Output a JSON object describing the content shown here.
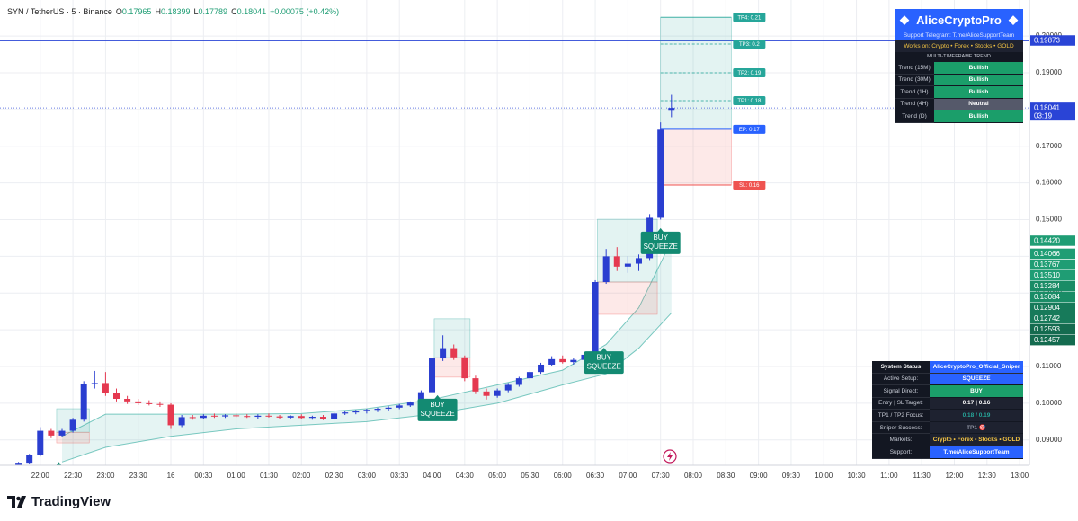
{
  "header": {
    "symbol": "SYN / TetherUS · 5 · Binance",
    "ohlc": [
      {
        "label": "O",
        "value": "0.17965"
      },
      {
        "label": "H",
        "value": "0.18399"
      },
      {
        "label": "L",
        "value": "0.17789"
      },
      {
        "label": "C",
        "value": "0.18041"
      }
    ],
    "change": "+0.00075 (+0.42%)"
  },
  "chart_data": {
    "type": "candlestick",
    "x": [
      "21:40",
      "21:50",
      "22:00",
      "22:10",
      "22:20",
      "22:30",
      "22:40",
      "22:50",
      "23:00",
      "23:10",
      "23:20",
      "23:30",
      "23:40",
      "23:50",
      "00:00",
      "00:10",
      "00:20",
      "00:30",
      "00:40",
      "00:50",
      "01:00",
      "01:10",
      "01:20",
      "01:30",
      "01:40",
      "01:50",
      "02:00",
      "02:10",
      "02:20",
      "02:30",
      "02:40",
      "02:50",
      "03:00",
      "03:10",
      "03:20",
      "03:30",
      "03:40",
      "03:50",
      "04:00",
      "04:10",
      "04:20",
      "04:30",
      "04:40",
      "04:50",
      "05:00",
      "05:10",
      "05:20",
      "05:30",
      "05:40",
      "05:50",
      "06:00",
      "06:10",
      "06:20",
      "06:30",
      "06:40",
      "06:50",
      "07:00",
      "07:10",
      "07:20",
      "07:30",
      "07:40"
    ],
    "open": [
      0.0832,
      0.0838,
      0.0858,
      0.0925,
      0.0912,
      0.0925,
      0.0955,
      0.1052,
      0.1055,
      0.1028,
      0.1012,
      0.1005,
      0.1,
      0.0998,
      0.0996,
      0.094,
      0.0962,
      0.096,
      0.0966,
      0.0964,
      0.0967,
      0.0965,
      0.0963,
      0.0966,
      0.0964,
      0.0961,
      0.0965,
      0.096,
      0.0963,
      0.0957,
      0.0972,
      0.0975,
      0.0978,
      0.0982,
      0.0985,
      0.0988,
      0.0994,
      0.1002,
      0.103,
      0.1122,
      0.115,
      0.1125,
      0.1068,
      0.1032,
      0.102,
      0.1035,
      0.105,
      0.1068,
      0.1085,
      0.1105,
      0.112,
      0.1112,
      0.1118,
      0.1132,
      0.133,
      0.14,
      0.1372,
      0.138,
      0.1395,
      0.1505,
      0.17965
    ],
    "high": [
      0.084,
      0.0862,
      0.0935,
      0.093,
      0.093,
      0.096,
      0.106,
      0.1088,
      0.1085,
      0.104,
      0.102,
      0.1012,
      0.1008,
      0.1005,
      0.1,
      0.0968,
      0.0968,
      0.097,
      0.0972,
      0.097,
      0.0972,
      0.097,
      0.097,
      0.0972,
      0.0968,
      0.0967,
      0.097,
      0.0966,
      0.0968,
      0.0975,
      0.098,
      0.0982,
      0.0985,
      0.0988,
      0.0992,
      0.0998,
      0.1005,
      0.1035,
      0.1128,
      0.1185,
      0.116,
      0.113,
      0.1075,
      0.104,
      0.104,
      0.1055,
      0.1072,
      0.109,
      0.111,
      0.1128,
      0.113,
      0.1122,
      0.114,
      0.1335,
      0.142,
      0.1425,
      0.14,
      0.1405,
      0.1515,
      0.1765,
      0.18399
    ],
    "low": [
      0.083,
      0.0836,
      0.0855,
      0.0905,
      0.0908,
      0.092,
      0.095,
      0.104,
      0.102,
      0.1005,
      0.0998,
      0.0995,
      0.0994,
      0.099,
      0.093,
      0.0935,
      0.0955,
      0.0958,
      0.096,
      0.096,
      0.0962,
      0.096,
      0.0958,
      0.0961,
      0.0958,
      0.0956,
      0.0958,
      0.0955,
      0.0954,
      0.0955,
      0.0968,
      0.097,
      0.0972,
      0.0976,
      0.098,
      0.0984,
      0.099,
      0.0998,
      0.1025,
      0.1115,
      0.1118,
      0.106,
      0.1025,
      0.101,
      0.1015,
      0.103,
      0.1045,
      0.1062,
      0.108,
      0.11,
      0.1108,
      0.1105,
      0.111,
      0.1128,
      0.1325,
      0.136,
      0.1355,
      0.136,
      0.139,
      0.15,
      0.17789
    ],
    "close": [
      0.0838,
      0.0858,
      0.0925,
      0.0912,
      0.0925,
      0.0955,
      0.1052,
      0.1055,
      0.1028,
      0.1012,
      0.1005,
      0.1,
      0.0998,
      0.0996,
      0.094,
      0.0962,
      0.096,
      0.0966,
      0.0964,
      0.0967,
      0.0965,
      0.0963,
      0.0966,
      0.0964,
      0.0961,
      0.0965,
      0.096,
      0.0963,
      0.0957,
      0.0972,
      0.0975,
      0.0978,
      0.0982,
      0.0985,
      0.0988,
      0.0994,
      0.1002,
      0.103,
      0.1122,
      0.115,
      0.1125,
      0.1068,
      0.1032,
      0.102,
      0.1035,
      0.105,
      0.1068,
      0.1085,
      0.1105,
      0.112,
      0.1112,
      0.1118,
      0.1132,
      0.133,
      0.14,
      0.1372,
      0.138,
      0.1395,
      0.1505,
      0.1745,
      0.18041
    ],
    "up_color": "#2a3ed0",
    "down_color": "#e53950",
    "xlim": [
      "21:23",
      "13:09"
    ],
    "xticks": [
      "22:00",
      "22:30",
      "23:00",
      "23:30",
      {
        "value": "00:00",
        "label": "16"
      },
      "00:30",
      "01:00",
      "01:30",
      "02:00",
      "02:30",
      "03:00",
      "03:30",
      "04:00",
      "04:30",
      "05:00",
      "05:30",
      "06:00",
      "06:30",
      "07:00",
      "07:30",
      "08:00",
      "08:30",
      "09:00",
      "09:30",
      "10:00",
      "10:30",
      "11:00",
      "11:30",
      "12:00",
      "12:30",
      "13:00"
    ],
    "ylim": [
      0.0831,
      0.2098
    ],
    "yticks": [
      {
        "value": 0.09,
        "label": "0.09000"
      },
      {
        "value": 0.1,
        "label": "0.10000"
      },
      {
        "value": 0.11,
        "label": "0.11000"
      },
      {
        "value": 0.12,
        "label": "0.12000"
      },
      {
        "value": 0.13,
        "label": "0.13000"
      },
      {
        "value": 0.14,
        "label": "0.14000"
      },
      {
        "value": 0.15,
        "label": "0.15000"
      },
      {
        "value": 0.16,
        "label": "0.16000"
      },
      {
        "value": 0.17,
        "label": "0.17000"
      },
      {
        "value": 0.18,
        "label": "0.18000"
      },
      {
        "value": 0.19,
        "label": "0.19000"
      },
      {
        "value": 0.2,
        "label": "0.20000"
      }
    ],
    "grid": true,
    "ribbon": {
      "color": "#26a69a",
      "x": [
        "22:20",
        "23:00",
        "00:00",
        "01:00",
        "02:00",
        "03:00",
        "04:00",
        "05:00",
        "06:00",
        "06:40",
        "07:10",
        "07:40"
      ],
      "upper": [
        0.091,
        0.097,
        0.097,
        0.097,
        0.0972,
        0.0985,
        0.101,
        0.105,
        0.109,
        0.116,
        0.126,
        0.1442
      ],
      "lower": [
        0.084,
        0.088,
        0.091,
        0.093,
        0.094,
        0.095,
        0.097,
        0.1,
        0.105,
        0.108,
        0.115,
        0.12457
      ]
    },
    "hline": {
      "value": 0.19873,
      "color": "#2a44d6"
    },
    "price_labels": [
      {
        "value": 0.19873,
        "label": "0.19873",
        "color": "#2a44d6"
      },
      {
        "value": 0.18041,
        "label": "0.18041",
        "color": "#2a44d6"
      },
      {
        "value": 0.1442,
        "label": "0.14420",
        "color": "#1f9d74"
      },
      {
        "value": 0.14066,
        "label": "0.14066",
        "color": "#1f9d74"
      },
      {
        "value": 0.13767,
        "label": "0.13767",
        "color": "#1f9d74"
      },
      {
        "value": 0.1351,
        "label": "0.13510",
        "color": "#1f9d74"
      },
      {
        "value": 0.13284,
        "label": "0.13284",
        "color": "#1a8c66"
      },
      {
        "value": 0.13084,
        "label": "0.13084",
        "color": "#1a8c66"
      },
      {
        "value": 0.12904,
        "label": "0.12904",
        "color": "#177a5a"
      },
      {
        "value": 0.12742,
        "label": "0.12742",
        "color": "#177a5a"
      },
      {
        "value": 0.12593,
        "label": "0.12593",
        "color": "#146b4f"
      },
      {
        "value": 0.12457,
        "label": "0.12457",
        "color": "#146b4f"
      }
    ],
    "countdown": "03:19",
    "zones": [
      {
        "x": [
          "22:15",
          "22:45"
        ],
        "target": 0.0985,
        "entry": 0.0921,
        "stop": 0.0892
      },
      {
        "x": [
          "04:02",
          "04:35"
        ],
        "target": 0.123,
        "entry": 0.1124,
        "stop": 0.1071
      },
      {
        "x": [
          "06:32",
          "07:27"
        ],
        "target": 0.1501,
        "entry": 0.133,
        "stop": 0.1242
      },
      {
        "x": [
          "07:30",
          "08:35"
        ],
        "target": 0.2051,
        "entry": 0.1746,
        "stop": 0.1594,
        "levels": [
          {
            "value": 0.2051,
            "label": "TP4: 0.21",
            "color": "#26a69a"
          },
          {
            "value": 0.1978,
            "label": "TP3: 0.2",
            "color": "#26a69a"
          },
          {
            "value": 0.19,
            "label": "TP2: 0.19",
            "color": "#26a69a"
          },
          {
            "value": 0.1824,
            "label": "TP1: 0.18",
            "color": "#26a69a"
          },
          {
            "value": 0.1746,
            "label": "EP: 0.17",
            "color": "#2962ff"
          },
          {
            "value": 0.1594,
            "label": "SL: 0.16",
            "color": "#ef5350"
          }
        ]
      }
    ],
    "signals": [
      {
        "x": "22:17",
        "price": 0.084,
        "text": [
          "BUY",
          "SQUEEZE"
        ]
      },
      {
        "x": "04:05",
        "price": 0.1022,
        "text": [
          "BUY",
          "SQUEEZE"
        ]
      },
      {
        "x": "06:38",
        "price": 0.1151,
        "text": [
          "BUY",
          "SQUEEZE"
        ]
      },
      {
        "x": "07:30",
        "price": 0.1477,
        "text": [
          "BUY",
          "SQUEEZE"
        ]
      }
    ]
  },
  "panel": {
    "title": "AliceCryptoPro",
    "support": "Support Telegram: T.me/AliceSupportTeam",
    "works_on": "Works on: Crypto • Forex • Stocks • GOLD",
    "section": "MULTI-TIMEFRAME TREND",
    "rows": [
      {
        "label": "Trend (15M)",
        "value": "Bullish",
        "color": "#1b9e6a"
      },
      {
        "label": "Trend (30M)",
        "value": "Bullish",
        "color": "#1b9e6a"
      },
      {
        "label": "Trend (1H)",
        "value": "Bullish",
        "color": "#1b9e6a"
      },
      {
        "label": "Trend (4H)",
        "value": "Neutral",
        "color": "#55596a"
      },
      {
        "label": "Trend (D)",
        "value": "Bullish",
        "color": "#1b9e6a"
      }
    ]
  },
  "status": {
    "header": [
      "System Status",
      "AliceCryptoPro_Official_Sniper"
    ],
    "rows": [
      {
        "label": "Active Setup:",
        "value": "SQUEEZE",
        "bg": "#2962ff",
        "fg": "#ffffff"
      },
      {
        "label": "Signal Direct:",
        "value": "BUY",
        "bg": "#1b9e6a",
        "fg": "#ffffff"
      },
      {
        "label": "Entry | SL Target:",
        "value": "0.17 | 0.16",
        "bg": "#1e2230",
        "fg": "#ffffff"
      },
      {
        "label": "TP1 / TP2 Focus:",
        "value": "0.18 / 0.19",
        "bg": "#1e2230",
        "fg": "#26a69a"
      },
      {
        "label": "Sniper Success:",
        "value": "TP1 🎯",
        "bg": "#1e2230",
        "fg": "#8a8f9e"
      },
      {
        "label": "Markets:",
        "value": "Crypto • Forex • Stocks • GOLD",
        "bg": "#1e2230",
        "fg": "#f5c542"
      },
      {
        "label": "Support:",
        "value": "T.me/AliceSupportTeam",
        "bg": "#2962ff",
        "fg": "#ffffff"
      }
    ]
  },
  "brand": "TradingView"
}
